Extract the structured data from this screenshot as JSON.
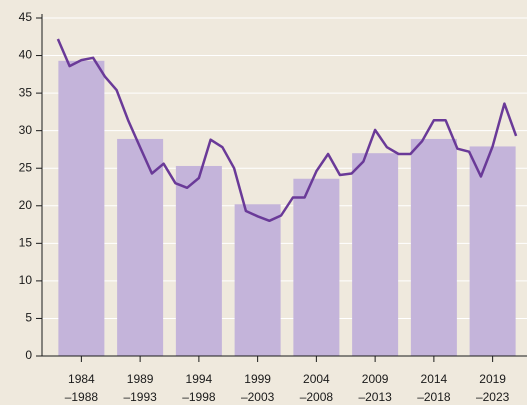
{
  "chart_data": {
    "type": "bar",
    "categories": [
      [
        "1984",
        "–1988"
      ],
      [
        "1989",
        "–1993"
      ],
      [
        "1994",
        "–1998"
      ],
      [
        "1999",
        "–2003"
      ],
      [
        "2004",
        "–2008"
      ],
      [
        "2009",
        "–2013"
      ],
      [
        "2014",
        "–2018"
      ],
      [
        "2019",
        "–2023"
      ]
    ],
    "values": [
      39.3,
      28.9,
      25.3,
      20.2,
      23.6,
      27.0,
      28.9,
      27.9
    ],
    "color": "#c4b4da",
    "line": {
      "color": "#6a3a98",
      "values": [
        42.2,
        38.6,
        39.4,
        39.7,
        37.2,
        35.4,
        31.3,
        27.8,
        24.3,
        25.6,
        23.0,
        22.4,
        23.7,
        28.8,
        27.8,
        25.0,
        19.3,
        18.6,
        18.0,
        18.7,
        21.1,
        21.1,
        24.6,
        26.9,
        24.1,
        24.3,
        25.9,
        30.1,
        27.8,
        26.9,
        26.9,
        28.6,
        31.4,
        31.4,
        27.6,
        27.2,
        23.9,
        27.9,
        33.6,
        29.3
      ]
    },
    "ylim": [
      0,
      45
    ],
    "yticks": [
      0,
      5,
      10,
      15,
      20,
      25,
      30,
      35,
      40,
      45
    ],
    "grid": true
  }
}
